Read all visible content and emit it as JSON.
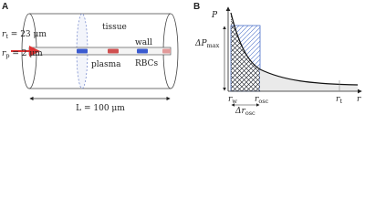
{
  "panel_a": {
    "label": "A",
    "radius_tissue": {
      "symbol": "r",
      "sub": "t",
      "rest": " = 23 μm"
    },
    "radius_plasma": {
      "symbol": "r",
      "sub": "p",
      "rest": " = 2 μm"
    },
    "tissue": "tissue",
    "wall": "wall",
    "plasma": "plasma",
    "rbcs": "RBCs",
    "length": "L = 100 μm"
  },
  "panel_b": {
    "label": "B",
    "y_axis": "P",
    "delta_p": {
      "symbol": "ΔP",
      "sub": "max"
    },
    "r_w": {
      "symbol": "r",
      "sub": "w"
    },
    "r_osc": {
      "symbol": "r",
      "sub": "osc"
    },
    "r_t": {
      "symbol": "r",
      "sub": "t"
    },
    "x_axis": "r",
    "delta_r": {
      "symbol": "Δr",
      "sub": "osc"
    }
  }
}
